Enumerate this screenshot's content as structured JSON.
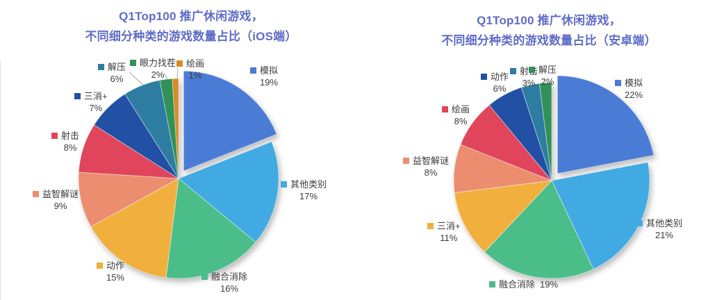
{
  "styles": {
    "title_color": "#5E6CC8",
    "label_color": "#3B3B3B",
    "leader_line_color": "#A6A6A6",
    "background": "#FFFFFF",
    "divider_color": "#E3E3E3"
  },
  "chart_data": [
    {
      "type": "pie",
      "platform": "iOS",
      "title": "Q1Top100 推广休闲游戏，不同细分种类的游戏数量占比（iOS端）",
      "title_lines": [
        "Q1Top100 推广休闲游戏，",
        "不同细分种类的游戏数量占比（iOS端）"
      ],
      "unit": "%",
      "direction": "clockwise",
      "start_angle_deg": 0,
      "exploded_index": 0,
      "legend_position": "labels-around-pie",
      "categories": [
        "模拟",
        "其他类别",
        "融合消除",
        "动作",
        "益智解谜",
        "射击",
        "三消+",
        "解压",
        "眼力找茬",
        "绘画"
      ],
      "values": [
        19,
        17,
        16,
        15,
        9,
        8,
        7,
        6,
        2,
        1
      ],
      "labels": [
        "19%",
        "17%",
        "16%",
        "15%",
        "9%",
        "8%",
        "7%",
        "6%",
        "2%",
        "1%"
      ],
      "colors": [
        "#4A7CD6",
        "#41AAE2",
        "#4BBD89",
        "#F1AF3E",
        "#EC8D70",
        "#E0455C",
        "#2150A4",
        "#2C7DA1",
        "#319158",
        "#D98A20"
      ]
    },
    {
      "type": "pie",
      "platform": "安卓",
      "title": "Q1Top100 推广休闲游戏，不同细分种类的游戏数量占比（安卓端）",
      "title_lines": [
        "Q1Top100 推广休闲游戏，",
        "不同细分种类的游戏数量占比（安卓端）"
      ],
      "unit": "%",
      "direction": "clockwise",
      "start_angle_deg": 0,
      "exploded_index": 0,
      "legend_position": "labels-around-pie",
      "categories": [
        "模拟",
        "其他类别",
        "融合消除",
        "三消+",
        "益智解谜",
        "绘画",
        "动作",
        "射击",
        "解压"
      ],
      "values": [
        22,
        21,
        19,
        11,
        8,
        8,
        6,
        3,
        2
      ],
      "labels": [
        "22%",
        "21%",
        "19%",
        "11%",
        "8%",
        "8%",
        "6%",
        "3%",
        "2%"
      ],
      "colors": [
        "#4A7CD6",
        "#41AAE2",
        "#4BBD89",
        "#F1AF3E",
        "#EC8D70",
        "#E0455C",
        "#2150A4",
        "#2C7DA1",
        "#319158"
      ]
    }
  ]
}
